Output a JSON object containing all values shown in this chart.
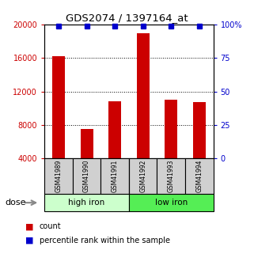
{
  "title": "GDS2074 / 1397164_at",
  "categories": [
    "GSM41989",
    "GSM41990",
    "GSM41991",
    "GSM41992",
    "GSM41993",
    "GSM41994"
  ],
  "bar_values": [
    16200,
    7500,
    10800,
    19000,
    11000,
    10700
  ],
  "percentile_values": [
    99,
    99,
    99,
    99,
    99,
    99
  ],
  "bar_color": "#cc0000",
  "percentile_color": "#0000cc",
  "ylim_left": [
    4000,
    20000
  ],
  "ylim_right": [
    0,
    100
  ],
  "yticks_left": [
    4000,
    8000,
    12000,
    16000,
    20000
  ],
  "yticks_right": [
    0,
    25,
    50,
    75,
    100
  ],
  "ytick_labels_right": [
    "0",
    "25",
    "50",
    "75",
    "100%"
  ],
  "group1_label": "high iron",
  "group2_label": "low iron",
  "group1_color": "#ccffcc",
  "group2_color": "#55ee55",
  "dose_label": "dose",
  "legend_count_label": "count",
  "legend_pct_label": "percentile rank within the sample",
  "background_color": "#ffffff",
  "tick_label_color_left": "#cc0000",
  "tick_label_color_right": "#0000cc",
  "title_color": "#000000",
  "label_box_color": "#d0d0d0",
  "bar_width": 0.45
}
